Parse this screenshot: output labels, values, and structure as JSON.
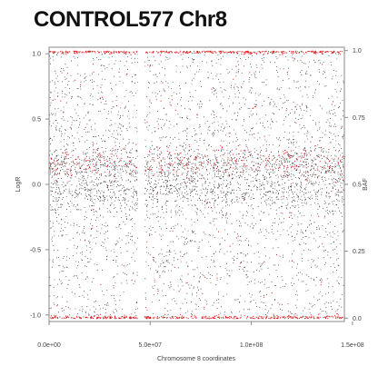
{
  "chart_data": {
    "type": "scatter",
    "title": "CONTROL577 Chr8",
    "xlabel": "Chromosome 8 coordinates",
    "ylabel": "LogR",
    "y2label": "BAF",
    "xlim": [
      0,
      146000000
    ],
    "ylim": [
      -1.05,
      1.05
    ],
    "y2lim": [
      -0.0125,
      1.0125
    ],
    "x_ticks": [
      {
        "value": 0,
        "label": "0.0e+00"
      },
      {
        "value": 50000000,
        "label": "5.0e+07"
      },
      {
        "value": 100000000,
        "label": "1.0e+08"
      },
      {
        "value": 150000000,
        "label": "1.5e+08"
      }
    ],
    "y_ticks": [
      {
        "value": 1.0,
        "label": "1.0"
      },
      {
        "value": 0.5,
        "label": "0.5"
      },
      {
        "value": 0.0,
        "label": "0.0"
      },
      {
        "value": -0.5,
        "label": "-0.5"
      },
      {
        "value": -1.0,
        "label": "-1.0"
      }
    ],
    "y2_ticks": [
      {
        "value": 1.0,
        "label": "1.0"
      },
      {
        "value": 0.75,
        "label": "0.75"
      },
      {
        "value": 0.5,
        "label": "0.5"
      },
      {
        "value": 0.25,
        "label": "0.25"
      },
      {
        "value": 0.0,
        "label": "0.0"
      }
    ],
    "centromere_gap": [
      44000000,
      47000000
    ],
    "series": [
      {
        "color": "#000000",
        "axis": "left",
        "center": 0.08,
        "spread": 0.28,
        "band_centers": [
          0.15,
          -0.05
        ]
      },
      {
        "color": "#d40000",
        "axis": "right",
        "bands": [
          0.0,
          0.33,
          0.5,
          0.67,
          1.0
        ]
      }
    ],
    "grid": false
  }
}
